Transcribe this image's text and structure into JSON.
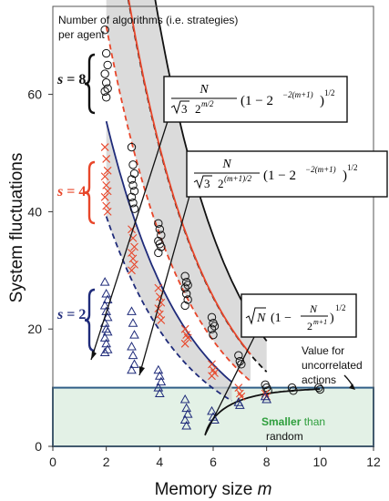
{
  "chart_data": {
    "type": "scatter",
    "title": "",
    "xlabel_text": "Memory size",
    "xlabel_var": "m",
    "ylabel": "System fluctuations",
    "xlim": [
      0,
      12
    ],
    "ylim": [
      0,
      75
    ],
    "x_ticks": [
      0,
      2,
      4,
      6,
      8,
      10,
      12
    ],
    "y_ticks": [
      0,
      20,
      40,
      60
    ],
    "grid": false,
    "colors": {
      "s8": "#111111",
      "s4": "#e8462a",
      "s2": "#1f2b7a",
      "band": "#cfcfcf",
      "region": "#e3f1e6",
      "region_border": "#2f5e87",
      "green_text": "#2e9e3c"
    },
    "top_note": [
      "Number of algorithms (i.e. strategies)",
      "per agent"
    ],
    "series": [
      {
        "name": "s = 8",
        "s_var": "s",
        "s_value": "= 8",
        "marker": "circle",
        "color": "#111111",
        "points": [
          {
            "m": 2,
            "values": [
              71,
              67,
              65,
              63.5,
              62,
              61,
              60.5,
              59.5
            ]
          },
          {
            "m": 3,
            "values": [
              51,
              48,
              46.5,
              45.5,
              44.5,
              43.5,
              42.5,
              41.5,
              40.5
            ]
          },
          {
            "m": 4,
            "values": [
              38,
              37,
              36,
              35,
              34.5,
              34,
              33
            ]
          },
          {
            "m": 5,
            "values": [
              29,
              28,
              27.5,
              27,
              26,
              25,
              24
            ]
          },
          {
            "m": 6,
            "values": [
              22,
              21,
              20.5,
              20,
              19
            ]
          },
          {
            "m": 7,
            "values": [
              15.5,
              14.5,
              14
            ]
          },
          {
            "m": 8,
            "values": [
              10.5,
              10,
              9.5
            ]
          },
          {
            "m": 9,
            "values": [
              10,
              9.5
            ]
          },
          {
            "m": 10,
            "values": [
              10,
              9.7
            ]
          }
        ]
      },
      {
        "name": "s = 4",
        "s_var": "s",
        "s_value": "= 4",
        "marker": "x",
        "color": "#e8462a",
        "points": [
          {
            "m": 2,
            "values": [
              51,
              49,
              47,
              46,
              44.5,
              43.5,
              42.5,
              41,
              40
            ]
          },
          {
            "m": 3,
            "values": [
              37,
              35.5,
              34,
              33,
              32,
              31,
              30
            ]
          },
          {
            "m": 4,
            "values": [
              27,
              25.5,
              24.5,
              23.5,
              22.5,
              21.5
            ]
          },
          {
            "m": 5,
            "values": [
              20,
              19,
              18.5,
              17.5
            ]
          },
          {
            "m": 6,
            "values": [
              14,
              13,
              12.5,
              12
            ]
          },
          {
            "m": 7,
            "values": [
              10,
              9,
              8.5
            ]
          },
          {
            "m": 8,
            "values": [
              9,
              8.5
            ]
          }
        ]
      },
      {
        "name": "s = 2",
        "s_var": "s",
        "s_value": "= 2",
        "marker": "triangle",
        "color": "#1f2b7a",
        "points": [
          {
            "m": 2,
            "values": [
              28,
              26,
              25,
              24,
              23,
              22,
              21,
              20,
              19.5,
              18.5,
              17.5,
              16.5,
              16
            ]
          },
          {
            "m": 3,
            "values": [
              23,
              21,
              19,
              17,
              15.5,
              14,
              13
            ]
          },
          {
            "m": 4,
            "values": [
              13,
              12,
              11,
              10,
              9
            ]
          },
          {
            "m": 5,
            "values": [
              8,
              6.5,
              5.5,
              4.5,
              3.5
            ]
          },
          {
            "m": 6,
            "values": [
              6,
              5,
              4.5
            ]
          },
          {
            "m": 7,
            "values": [
              7.5,
              7
            ]
          },
          {
            "m": 8,
            "values": [
              8.5,
              8
            ]
          }
        ]
      }
    ],
    "random_value": 10,
    "annotations": {
      "uncorrelated": [
        "Value for",
        "uncorrelated",
        "actions"
      ],
      "smaller_green": "Smaller",
      "smaller_rest": "than",
      "random": "random"
    },
    "formulas": {
      "f1": {
        "num": "N",
        "root": "3",
        "base": "2",
        "exp": "m/2",
        "paren": "1 − 2",
        "pexp": "−2(m+1)",
        "outer": "1/2"
      },
      "f2": {
        "num": "N",
        "root": "3",
        "base": "2",
        "exp": "(m+1)/2",
        "paren": "1 − 2",
        "pexp": "−2(m+1)",
        "outer": "1/2"
      },
      "f3": {
        "root": "N",
        "one": "1 −",
        "num": "N",
        "den": "2",
        "dexp": "m+1",
        "outer": "1/2"
      }
    }
  }
}
